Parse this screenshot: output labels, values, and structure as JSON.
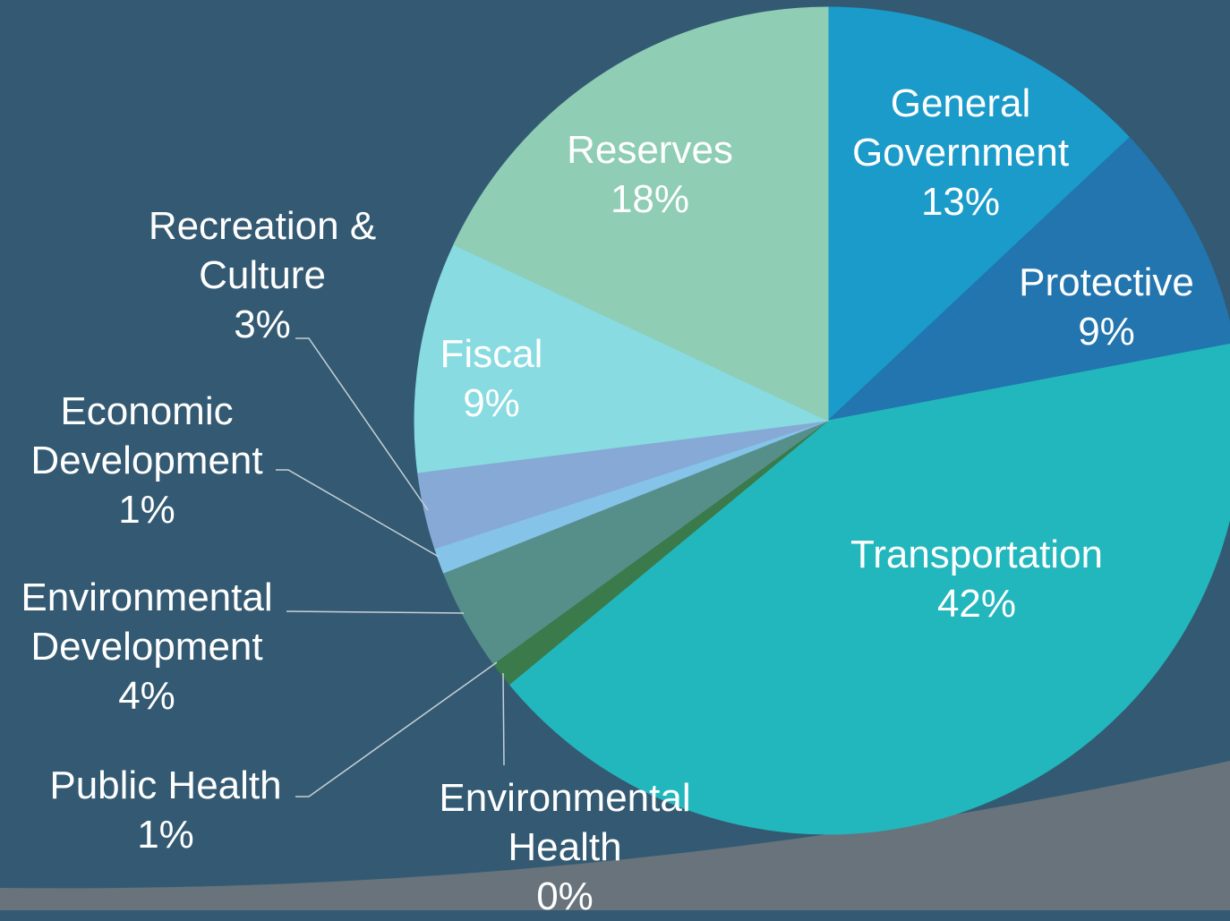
{
  "chart_data": {
    "type": "pie",
    "categories": [
      "General Government",
      "Protective",
      "Transportation",
      "Environmental Health",
      "Public Health",
      "Environmental Development",
      "Economic Development",
      "Recreation & Culture",
      "Fiscal",
      "Reserves"
    ],
    "values": [
      13,
      9,
      42,
      0,
      1,
      4,
      1,
      3,
      9,
      18
    ],
    "value_labels": [
      "13%",
      "9%",
      "42%",
      "0%",
      "1%",
      "4%",
      "1%",
      "3%",
      "9%",
      "18%"
    ],
    "colors": [
      "#1a9bca",
      "#2275ae",
      "#22b7bd",
      "#2f9f8c",
      "#3b7a4b",
      "#568f8a",
      "#85c3e9",
      "#87a9d5",
      "#87dbe1",
      "#8fcdb5"
    ]
  }
}
